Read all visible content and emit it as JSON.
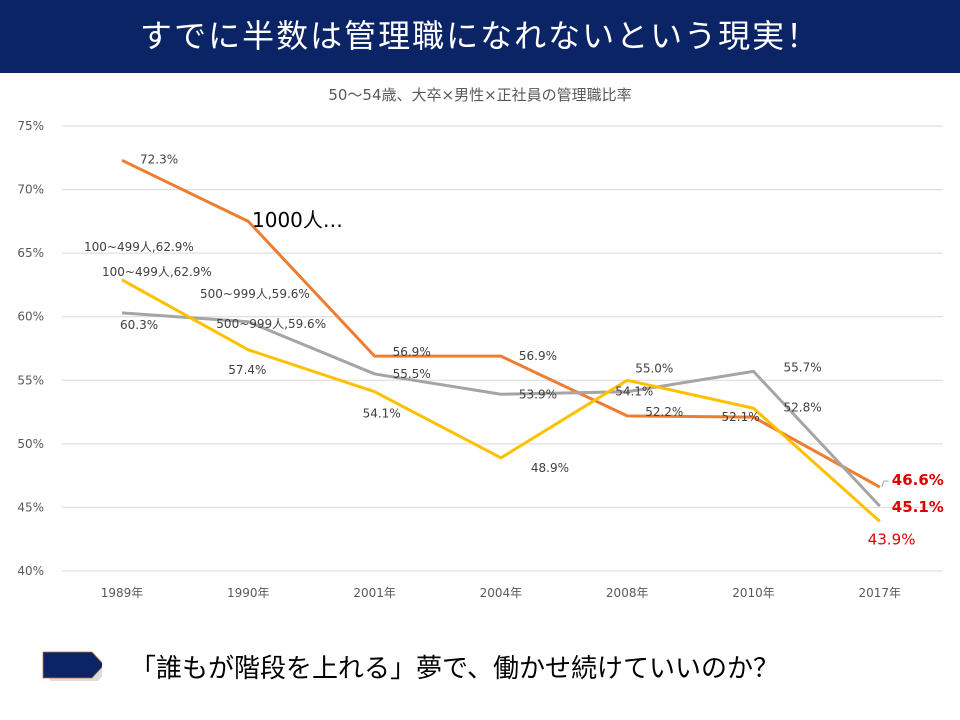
{
  "header": {
    "title": "すでに半数は管理職になれないという現実！"
  },
  "footer": {
    "text": "「誰もが階段を上れる」夢で、働かせ続けていいのか？",
    "arrow_icon": "pentagon-arrow-right"
  },
  "colors": {
    "header_bg": "#0b2466",
    "highlight": "#e00000"
  },
  "chart_data": {
    "type": "line",
    "title": "50～54歳、大卒×男性×正社員の管理職比率",
    "categories": [
      "1989年",
      "1990年",
      "2001年",
      "2004年",
      "2008年",
      "2010年",
      "2017年"
    ],
    "ylim": [
      40,
      75
    ],
    "yticks": [
      "40%",
      "45%",
      "50%",
      "55%",
      "60%",
      "65%",
      "70%",
      "75%"
    ],
    "grid": true,
    "legend": "none",
    "series": [
      {
        "color": "#ed7d31",
        "values": [
          72.3,
          67.5,
          56.9,
          56.9,
          52.2,
          52.1,
          46.6
        ],
        "labels": [
          "72.3%",
          "",
          "56.9%",
          "56.9%",
          "52.2%",
          "52.1%",
          "46.6%"
        ]
      },
      {
        "color": "#a5a5a5",
        "values": [
          60.3,
          59.6,
          55.5,
          53.9,
          54.1,
          55.7,
          45.1
        ],
        "labels": [
          "60.3%",
          "500~999人,59.6%",
          "55.5%",
          "53.9%",
          "54.1%",
          "55.7%",
          "45.1%"
        ]
      },
      {
        "color": "#ffc000",
        "values": [
          62.9,
          57.4,
          54.1,
          48.9,
          55.0,
          52.8,
          43.9
        ],
        "labels": [
          "100~499人,62.9%",
          "57.4%",
          "54.1%",
          "48.9%",
          "55.0%",
          "52.8%",
          "43.9%"
        ]
      }
    ],
    "annotations": [
      "1000人…",
      "100~499人,62.9%",
      "500~999人,59.6%"
    ]
  }
}
